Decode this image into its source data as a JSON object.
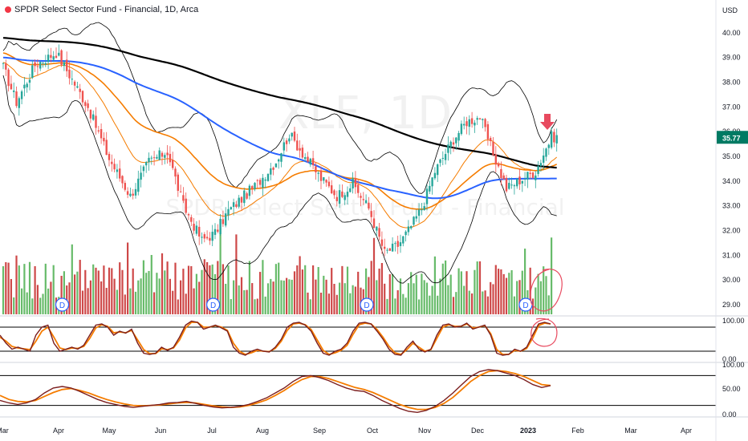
{
  "header": {
    "title": "SPDR Select Sector Fund - Financial, 1D, Arca"
  },
  "watermark": {
    "symbol": "XLF, 1D",
    "name": "SPDR Select Sector Fund - Financial"
  },
  "colors": {
    "up": "#26a69a",
    "down": "#ef5350",
    "vol_up": "#4caf50",
    "vol_down": "#c62828",
    "sma200": "#000000",
    "sma100": "#2962ff",
    "ema50": "#f57c00",
    "bb": "#000000",
    "stoch_k": "#7b1e1e",
    "stoch_d": "#f57c00",
    "price_badge": "#007a63"
  },
  "chart_data": [
    {
      "type": "candlestick",
      "currency": "USD",
      "current_price": "35.77",
      "price_ticks": [
        "40.00",
        "39.00",
        "38.00",
        "37.00",
        "36.00",
        "35.00",
        "34.00",
        "33.00",
        "32.00",
        "31.00",
        "30.00",
        "29.00"
      ],
      "ylim": [
        28.6,
        41.3
      ],
      "months": [
        "Mar",
        "Apr",
        "May",
        "Jun",
        "Jul",
        "Aug",
        "Sep",
        "Oct",
        "Nov",
        "Dec",
        "2023",
        "Feb",
        "Mar",
        "Apr"
      ],
      "dividend_marker": "D",
      "indicators": [
        "SMA 200",
        "SMA 100",
        "EMA 50",
        "EMA 20",
        "Bollinger Bands"
      ],
      "close_anchors": [
        [
          0,
          38.6
        ],
        [
          5,
          37.2
        ],
        [
          12,
          38.7
        ],
        [
          20,
          39.2
        ],
        [
          25,
          38.3
        ],
        [
          32,
          37.0
        ],
        [
          40,
          34.9
        ],
        [
          48,
          33.4
        ],
        [
          55,
          34.8
        ],
        [
          62,
          35.2
        ],
        [
          68,
          33.0
        ],
        [
          75,
          31.6
        ],
        [
          80,
          31.9
        ],
        [
          85,
          32.8
        ],
        [
          90,
          33.3
        ],
        [
          96,
          33.9
        ],
        [
          103,
          34.8
        ],
        [
          108,
          35.9
        ],
        [
          114,
          35.0
        ],
        [
          120,
          34.1
        ],
        [
          126,
          33.4
        ],
        [
          132,
          33.9
        ],
        [
          138,
          32.9
        ],
        [
          144,
          31.1
        ],
        [
          149,
          31.4
        ],
        [
          153,
          32.0
        ],
        [
          158,
          32.9
        ],
        [
          163,
          34.4
        ],
        [
          170,
          35.7
        ],
        [
          175,
          36.4
        ],
        [
          180,
          36.6
        ],
        [
          184,
          35.4
        ],
        [
          190,
          33.7
        ],
        [
          196,
          34.1
        ],
        [
          201,
          34.4
        ],
        [
          207,
          35.8
        ]
      ]
    },
    {
      "type": "line",
      "name": "Stochastic (fast)",
      "ticks": [
        "100.00",
        "0.00"
      ],
      "levels": [
        80,
        20
      ],
      "ylim": [
        0,
        100
      ],
      "k": [
        60,
        40,
        25,
        30,
        25,
        20,
        60,
        80,
        85,
        40,
        20,
        25,
        30,
        25,
        35,
        60,
        85,
        88,
        80,
        60,
        70,
        65,
        75,
        40,
        15,
        12,
        15,
        30,
        22,
        30,
        55,
        85,
        95,
        92,
        75,
        80,
        85,
        78,
        70,
        30,
        15,
        10,
        20,
        25,
        20,
        18,
        30,
        50,
        80,
        90,
        92,
        85,
        70,
        40,
        15,
        10,
        20,
        25,
        40,
        70,
        90,
        92,
        88,
        70,
        50,
        25,
        12,
        10,
        30,
        45,
        25,
        18,
        25,
        60,
        85,
        88,
        80,
        82,
        90,
        75,
        80,
        85,
        60,
        15,
        10,
        12,
        25,
        20,
        30,
        60,
        88,
        92,
        88
      ],
      "d": [
        55,
        45,
        32,
        28,
        26,
        24,
        45,
        70,
        80,
        55,
        28,
        24,
        28,
        27,
        32,
        52,
        78,
        86,
        82,
        66,
        68,
        66,
        72,
        48,
        24,
        14,
        14,
        26,
        24,
        28,
        48,
        78,
        92,
        92,
        80,
        80,
        84,
        80,
        72,
        40,
        20,
        12,
        16,
        22,
        20,
        19,
        27,
        45,
        72,
        88,
        90,
        86,
        74,
        48,
        22,
        12,
        16,
        22,
        35,
        62,
        86,
        90,
        88,
        74,
        55,
        32,
        16,
        12,
        24,
        40,
        30,
        20,
        24,
        52,
        80,
        86,
        82,
        82,
        88,
        78,
        80,
        84,
        64,
        24,
        12,
        12,
        22,
        20,
        27,
        52,
        84,
        90,
        88
      ]
    },
    {
      "type": "line",
      "name": "Stochastic (slow)",
      "ticks": [
        "100.00",
        "50.00",
        "0.00"
      ],
      "levels": [
        80,
        20
      ],
      "ylim": [
        0,
        100
      ],
      "k": [
        30,
        25,
        22,
        25,
        32,
        45,
        55,
        58,
        55,
        48,
        40,
        32,
        26,
        22,
        18,
        16,
        18,
        20,
        22,
        25,
        26,
        28,
        24,
        20,
        17,
        15,
        16,
        18,
        22,
        28,
        35,
        45,
        55,
        68,
        78,
        80,
        76,
        70,
        62,
        55,
        50,
        48,
        40,
        30,
        22,
        14,
        8,
        6,
        10,
        18,
        30,
        45,
        62,
        78,
        88,
        92,
        90,
        85,
        80,
        72,
        62,
        56,
        60
      ],
      "d": [
        40,
        32,
        28,
        27,
        30,
        38,
        46,
        52,
        54,
        50,
        45,
        38,
        32,
        27,
        23,
        20,
        19,
        20,
        21,
        23,
        25,
        26,
        25,
        22,
        19,
        17,
        16,
        17,
        20,
        25,
        31,
        40,
        50,
        62,
        72,
        78,
        78,
        74,
        68,
        62,
        56,
        52,
        46,
        38,
        30,
        22,
        16,
        12,
        12,
        16,
        24,
        36,
        52,
        68,
        80,
        88,
        90,
        88,
        84,
        78,
        70,
        62,
        60
      ]
    }
  ]
}
